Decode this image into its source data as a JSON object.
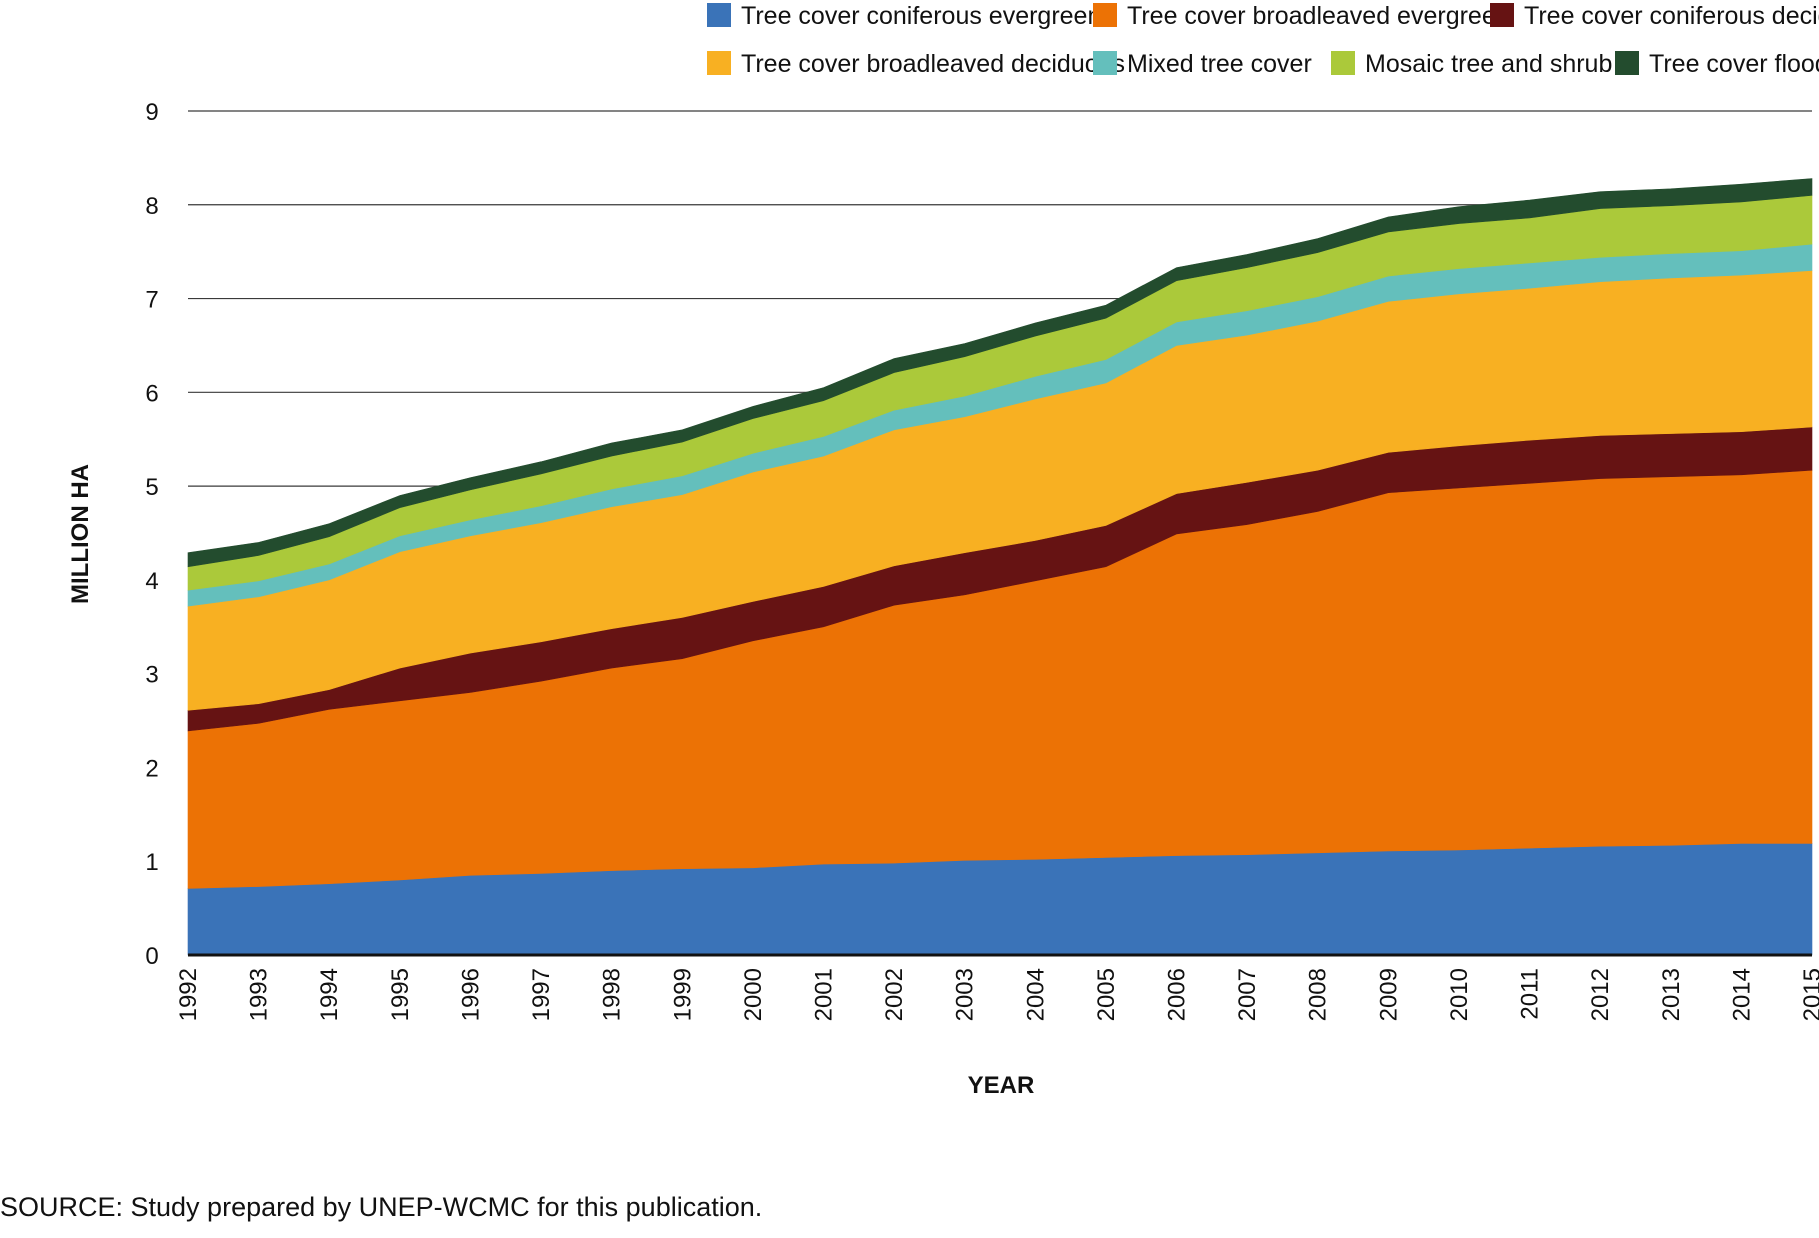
{
  "chart_data": {
    "type": "area",
    "stacked": true,
    "title": "",
    "xlabel": "YEAR",
    "ylabel": "MILLION HA",
    "ylim": [
      0,
      9
    ],
    "yticks": [
      0,
      1,
      2,
      3,
      4,
      5,
      6,
      7,
      8,
      9
    ],
    "grid": true,
    "legend_position": "top",
    "x": [
      1992,
      1993,
      1994,
      1995,
      1996,
      1997,
      1998,
      1999,
      2000,
      2001,
      2002,
      2003,
      2004,
      2005,
      2006,
      2007,
      2008,
      2009,
      2010,
      2011,
      2012,
      2013,
      2014,
      2015
    ],
    "series": [
      {
        "name": "Tree cover coniferous evergreen",
        "color": "#3a73b8",
        "values": [
          0.71,
          0.73,
          0.76,
          0.8,
          0.85,
          0.87,
          0.9,
          0.92,
          0.93,
          0.97,
          0.98,
          1.01,
          1.02,
          1.04,
          1.06,
          1.07,
          1.09,
          1.11,
          1.12,
          1.14,
          1.16,
          1.17,
          1.19,
          1.19
        ]
      },
      {
        "name": "Tree cover broadleaved evergreen",
        "color": "#ec7205",
        "values": [
          1.68,
          1.74,
          1.86,
          1.91,
          1.95,
          2.05,
          2.16,
          2.24,
          2.42,
          2.53,
          2.75,
          2.83,
          2.97,
          3.1,
          3.43,
          3.52,
          3.64,
          3.82,
          3.86,
          3.89,
          3.92,
          3.93,
          3.93,
          3.98
        ]
      },
      {
        "name": "Tree cover coniferous deciduous",
        "color": "#661313",
        "values": [
          0.22,
          0.21,
          0.21,
          0.35,
          0.42,
          0.42,
          0.42,
          0.44,
          0.42,
          0.43,
          0.42,
          0.45,
          0.43,
          0.44,
          0.43,
          0.45,
          0.44,
          0.43,
          0.45,
          0.46,
          0.46,
          0.46,
          0.46,
          0.46
        ]
      },
      {
        "name": "Tree cover broadleaved deciduous",
        "color": "#f8b022",
        "values": [
          1.11,
          1.14,
          1.17,
          1.24,
          1.25,
          1.27,
          1.3,
          1.31,
          1.38,
          1.39,
          1.45,
          1.45,
          1.51,
          1.52,
          1.58,
          1.57,
          1.59,
          1.61,
          1.62,
          1.62,
          1.64,
          1.66,
          1.67,
          1.67
        ]
      },
      {
        "name": "Mixed tree cover",
        "color": "#64bfbc",
        "values": [
          0.17,
          0.17,
          0.17,
          0.17,
          0.17,
          0.18,
          0.19,
          0.2,
          0.2,
          0.21,
          0.21,
          0.22,
          0.24,
          0.25,
          0.25,
          0.26,
          0.26,
          0.27,
          0.27,
          0.27,
          0.26,
          0.26,
          0.26,
          0.28
        ]
      },
      {
        "name": "Mosaic tree and shrub",
        "color": "#abc93a",
        "values": [
          0.25,
          0.27,
          0.29,
          0.3,
          0.32,
          0.34,
          0.35,
          0.36,
          0.37,
          0.38,
          0.4,
          0.42,
          0.43,
          0.44,
          0.44,
          0.46,
          0.47,
          0.47,
          0.48,
          0.48,
          0.52,
          0.51,
          0.52,
          0.52
        ]
      },
      {
        "name": "Tree cover flooded",
        "color": "#234c2e",
        "values": [
          0.15,
          0.14,
          0.14,
          0.13,
          0.13,
          0.13,
          0.14,
          0.13,
          0.13,
          0.14,
          0.15,
          0.14,
          0.14,
          0.14,
          0.14,
          0.14,
          0.15,
          0.16,
          0.18,
          0.19,
          0.18,
          0.18,
          0.19,
          0.18
        ]
      }
    ]
  },
  "source_note": "SOURCE: Study prepared by UNEP-WCMC for this publication."
}
